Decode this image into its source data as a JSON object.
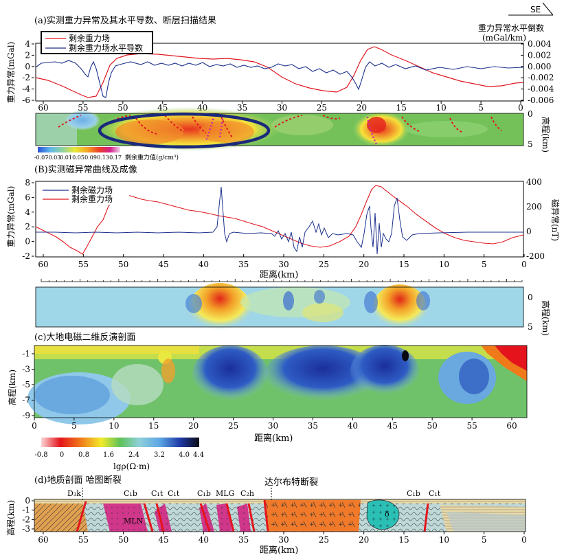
{
  "compass": {
    "direction": "SE"
  },
  "panel_a": {
    "title": "(a)实测重力异常及其水平导数、断层扫描结果",
    "ylabel_left": "重力异常(mGal)",
    "ylabel_right_1": "重力异常水平倒数",
    "ylabel_right_2": "(mGal/km)",
    "legend": [
      "剩余重力场",
      "剩余重力场水平导数"
    ],
    "left_ticks": [
      "4",
      "2",
      "0",
      "-2",
      "-4",
      "-6"
    ],
    "right_ticks": [
      "0.004",
      "0.002",
      "0.000",
      "-0.002",
      "-0.004",
      "-0.006"
    ],
    "x_ticks": [
      "60",
      "55",
      "50",
      "45",
      "40",
      "35",
      "30",
      "25",
      "20",
      "15",
      "10",
      "5",
      "0"
    ],
    "section_ylabel": "高程(km)",
    "section_ticks": [
      "0",
      "5"
    ],
    "colorbar_ticks": [
      "-0.07",
      "-0.03",
      "0.01",
      "0.05",
      "0.09",
      "0.13",
      "0.17"
    ],
    "colorbar_label": "剩余重力值(g/cm³)"
  },
  "panel_b": {
    "title": "(B)实测磁异常曲线及成像",
    "ylabel_left": "重力异常(mGal)",
    "ylabel_right": "磁异常(nT)",
    "legend": [
      "剩余磁力场",
      "剩余重力场"
    ],
    "left_ticks": [
      "8",
      "6",
      "4",
      "2",
      "0",
      "-2"
    ],
    "right_ticks": [
      "400",
      "200",
      "0",
      "-200"
    ],
    "x_ticks": [
      "60",
      "55",
      "50",
      "45",
      "40",
      "35",
      "30",
      "25",
      "20",
      "15",
      "10",
      "5",
      "0"
    ],
    "xlabel": "距离(km)",
    "section_ylabel": "高程(km)",
    "section_ticks": [
      "0",
      "5"
    ]
  },
  "panel_c": {
    "title": "(c)大地电磁二维反演剖面",
    "ylabel": "高程(km)",
    "y_ticks": [
      "-1",
      "-3",
      "-5",
      "-7",
      "-9"
    ],
    "x_ticks": [
      "0",
      "5",
      "10",
      "15",
      "20",
      "25",
      "30",
      "35",
      "40",
      "45",
      "50",
      "55",
      "60"
    ],
    "xlabel": "距离(km)",
    "colorbar_ticks": [
      "-0.8",
      "0",
      "0.8",
      "1.6",
      "2.4",
      "3.2",
      "4.0",
      "4.4"
    ],
    "colorbar_label": "lgρ(Ω·m)"
  },
  "panel_d": {
    "title": "(d)地质剖面  哈图断裂",
    "fault_label": "达尔布特断裂",
    "ylabel": "高程(km)",
    "y_ticks": [
      "0",
      "-1",
      "-2",
      "-3"
    ],
    "x_ticks": [
      "60",
      "55",
      "50",
      "45",
      "40",
      "35",
      "30",
      "25",
      "20",
      "15",
      "10",
      "5",
      "0"
    ],
    "xlabel": "距离(km)",
    "strata_labels": [
      "D₃k",
      "C₁b",
      "C₁t",
      "C₁t",
      "C₁b",
      "MLG",
      "C₂h",
      "C₁b",
      "C₁t"
    ],
    "rock_labels": [
      "MLN",
      "δ"
    ]
  },
  "colors": {
    "gravity": "#e0161e",
    "derivative": "#1c2f8c",
    "ellipse": "#1b2a7a",
    "rock_orange": "#f07a2a",
    "rock_teal": "#28c2b8",
    "rock_magenta": "#d0368a"
  }
}
